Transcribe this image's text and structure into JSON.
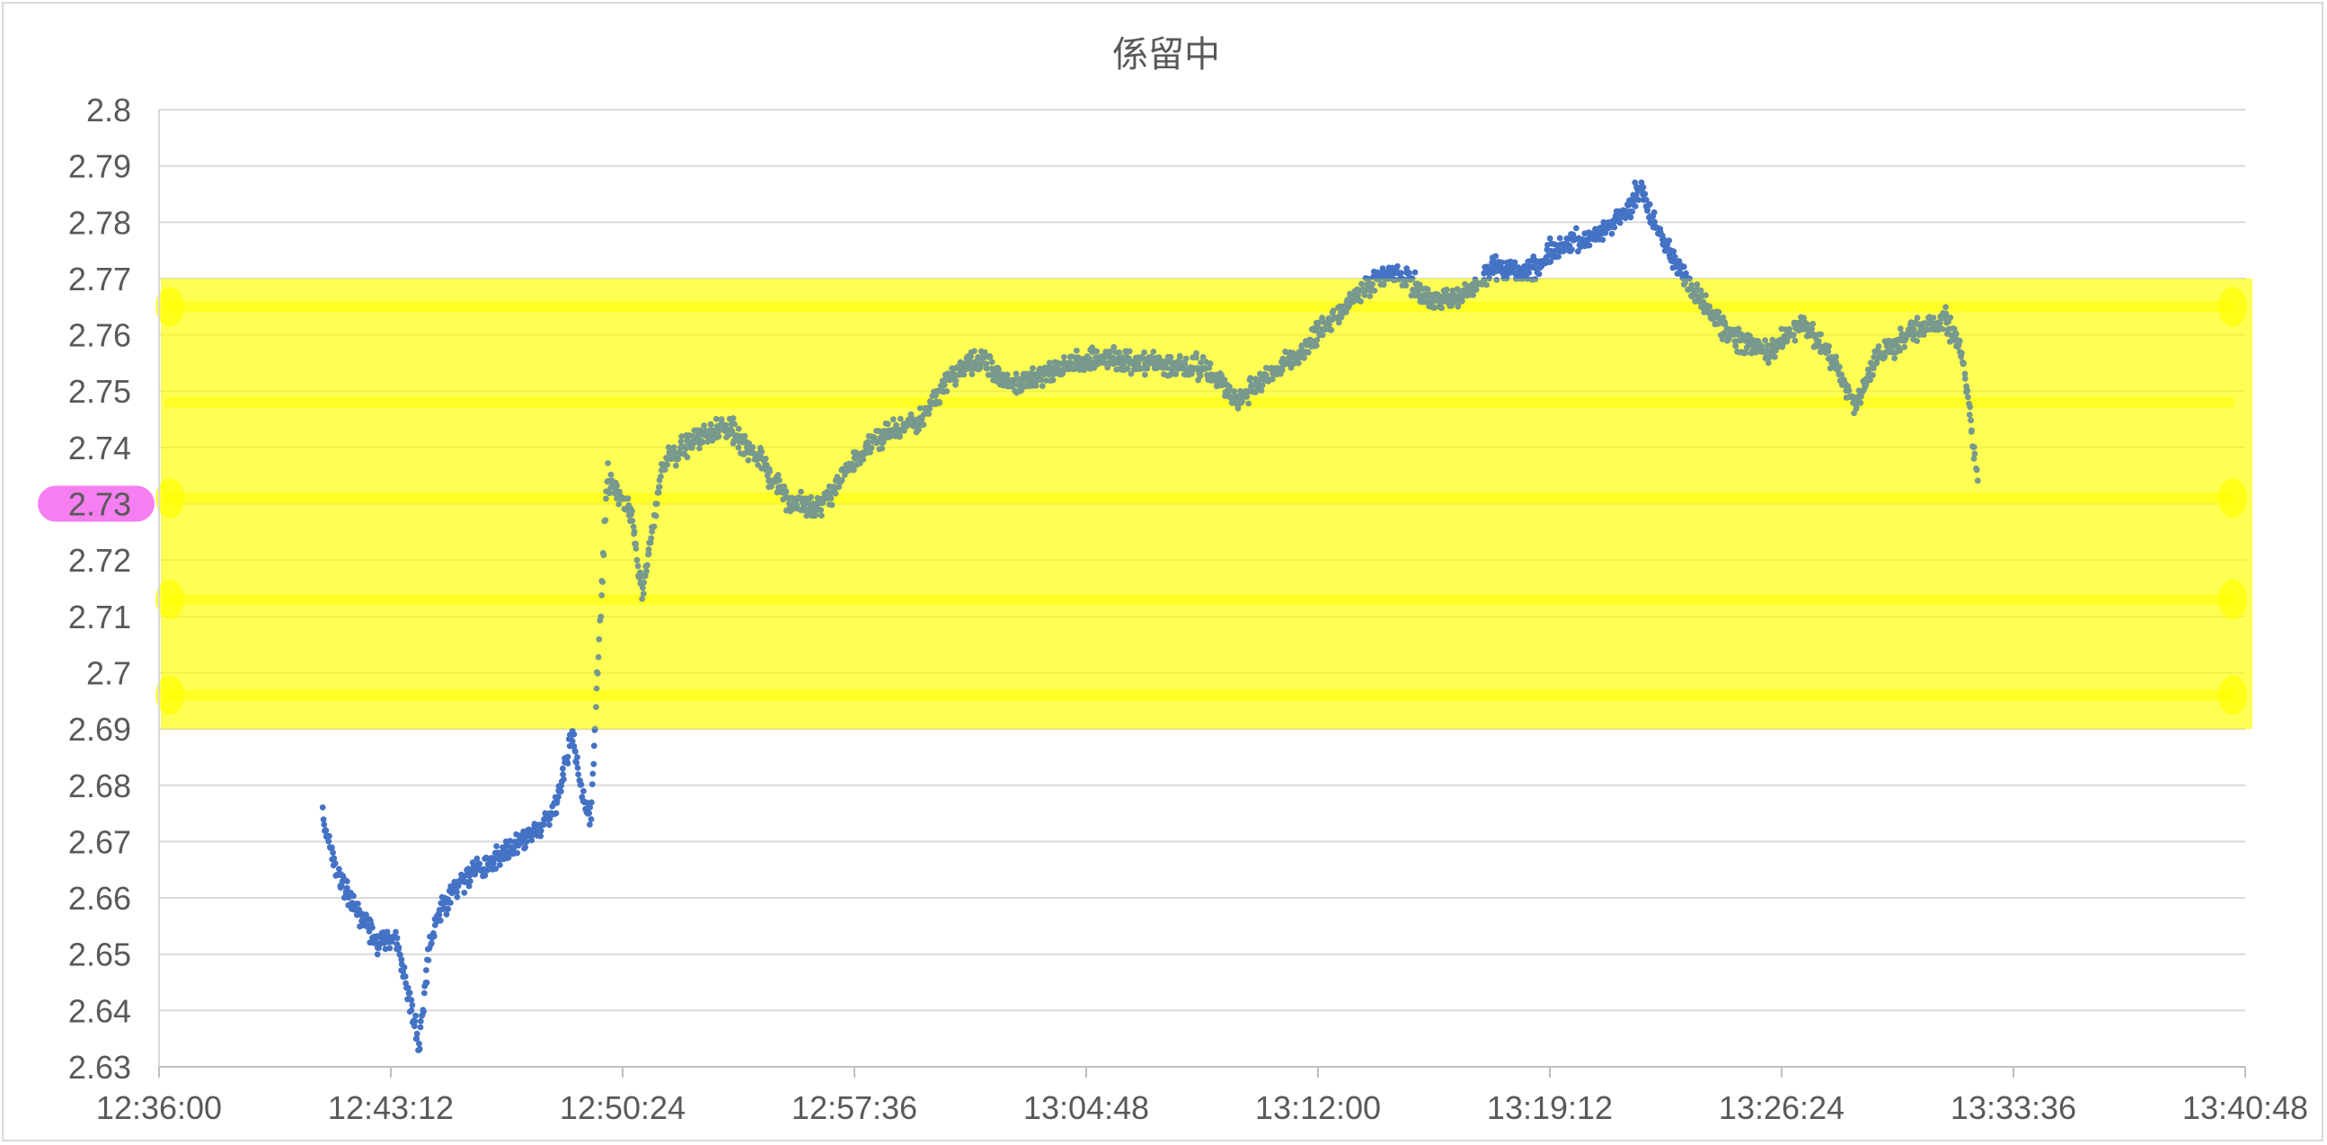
{
  "chart_data": {
    "type": "scatter",
    "title": "係留中",
    "xlabel": "",
    "ylabel": "",
    "xlim": [
      "12:36:00",
      "13:40:48"
    ],
    "ylim": [
      2.63,
      2.8
    ],
    "x_ticks": [
      "12:36:00",
      "12:43:12",
      "12:50:24",
      "12:57:36",
      "13:04:48",
      "13:12:00",
      "13:19:12",
      "13:26:24",
      "13:33:36",
      "13:40:48"
    ],
    "y_ticks": [
      "2.63",
      "2.64",
      "2.65",
      "2.66",
      "2.67",
      "2.68",
      "2.69",
      "2.7",
      "2.71",
      "2.72",
      "2.73",
      "2.74",
      "2.75",
      "2.76",
      "2.77",
      "2.78",
      "2.79",
      "2.8"
    ],
    "grid": true,
    "legend": "none",
    "series": [
      {
        "marker_color": "#4472c4",
        "points": [
          [
            "12:41:05",
            2.674
          ],
          [
            "12:41:30",
            2.665
          ],
          [
            "12:41:50",
            2.661
          ],
          [
            "12:42:20",
            2.656
          ],
          [
            "12:42:50",
            2.652
          ],
          [
            "12:43:20",
            2.653
          ],
          [
            "12:43:50",
            2.641
          ],
          [
            "12:44:05",
            2.633
          ],
          [
            "12:44:20",
            2.649
          ],
          [
            "12:44:40",
            2.657
          ],
          [
            "12:45:10",
            2.661
          ],
          [
            "12:45:40",
            2.664
          ],
          [
            "12:46:20",
            2.666
          ],
          [
            "12:47:00",
            2.669
          ],
          [
            "12:47:40",
            2.672
          ],
          [
            "12:48:20",
            2.676
          ],
          [
            "12:48:50",
            2.689
          ],
          [
            "12:49:10",
            2.677
          ],
          [
            "12:49:25",
            2.675
          ],
          [
            "12:49:55",
            2.735
          ],
          [
            "12:50:40",
            2.729
          ],
          [
            "12:51:00",
            2.714
          ],
          [
            "12:51:40",
            2.737
          ],
          [
            "12:52:30",
            2.741
          ],
          [
            "12:53:30",
            2.744
          ],
          [
            "12:54:30",
            2.739
          ],
          [
            "12:55:30",
            2.731
          ],
          [
            "12:56:30",
            2.729
          ],
          [
            "12:57:30",
            2.737
          ],
          [
            "12:58:30",
            2.742
          ],
          [
            "12:59:30",
            2.744
          ],
          [
            "13:00:30",
            2.752
          ],
          [
            "13:01:30",
            2.756
          ],
          [
            "13:02:30",
            2.751
          ],
          [
            "13:03:30",
            2.753
          ],
          [
            "13:04:30",
            2.755
          ],
          [
            "13:05:30",
            2.756
          ],
          [
            "13:06:30",
            2.755
          ],
          [
            "13:07:30",
            2.755
          ],
          [
            "13:08:30",
            2.754
          ],
          [
            "13:09:30",
            2.748
          ],
          [
            "13:10:30",
            2.753
          ],
          [
            "13:11:30",
            2.757
          ],
          [
            "13:12:30",
            2.763
          ],
          [
            "13:13:30",
            2.769
          ],
          [
            "13:14:30",
            2.771
          ],
          [
            "13:15:30",
            2.766
          ],
          [
            "13:16:30",
            2.767
          ],
          [
            "13:17:30",
            2.772
          ],
          [
            "13:18:30",
            2.771
          ],
          [
            "13:19:30",
            2.776
          ],
          [
            "13:20:30",
            2.777
          ],
          [
            "13:21:30",
            2.781
          ],
          [
            "13:22:00",
            2.786
          ],
          [
            "13:22:30",
            2.779
          ],
          [
            "13:23:00",
            2.774
          ],
          [
            "13:24:00",
            2.765
          ],
          [
            "13:25:00",
            2.759
          ],
          [
            "13:26:00",
            2.757
          ],
          [
            "13:27:00",
            2.762
          ],
          [
            "13:28:00",
            2.756
          ],
          [
            "13:28:40",
            2.747
          ],
          [
            "13:29:20",
            2.756
          ],
          [
            "13:30:30",
            2.761
          ],
          [
            "13:31:30",
            2.763
          ],
          [
            "13:32:00",
            2.757
          ],
          [
            "13:32:20",
            2.741
          ],
          [
            "13:32:30",
            2.734
          ]
        ]
      }
    ],
    "highlight": {
      "y_range": [
        2.69,
        2.77
      ],
      "x_range": [
        "12:36:00",
        "13:40:48"
      ],
      "color": "#ffff00",
      "highlighted_tick": "2.73",
      "highlighted_tick_color": "#f57ef0"
    }
  }
}
